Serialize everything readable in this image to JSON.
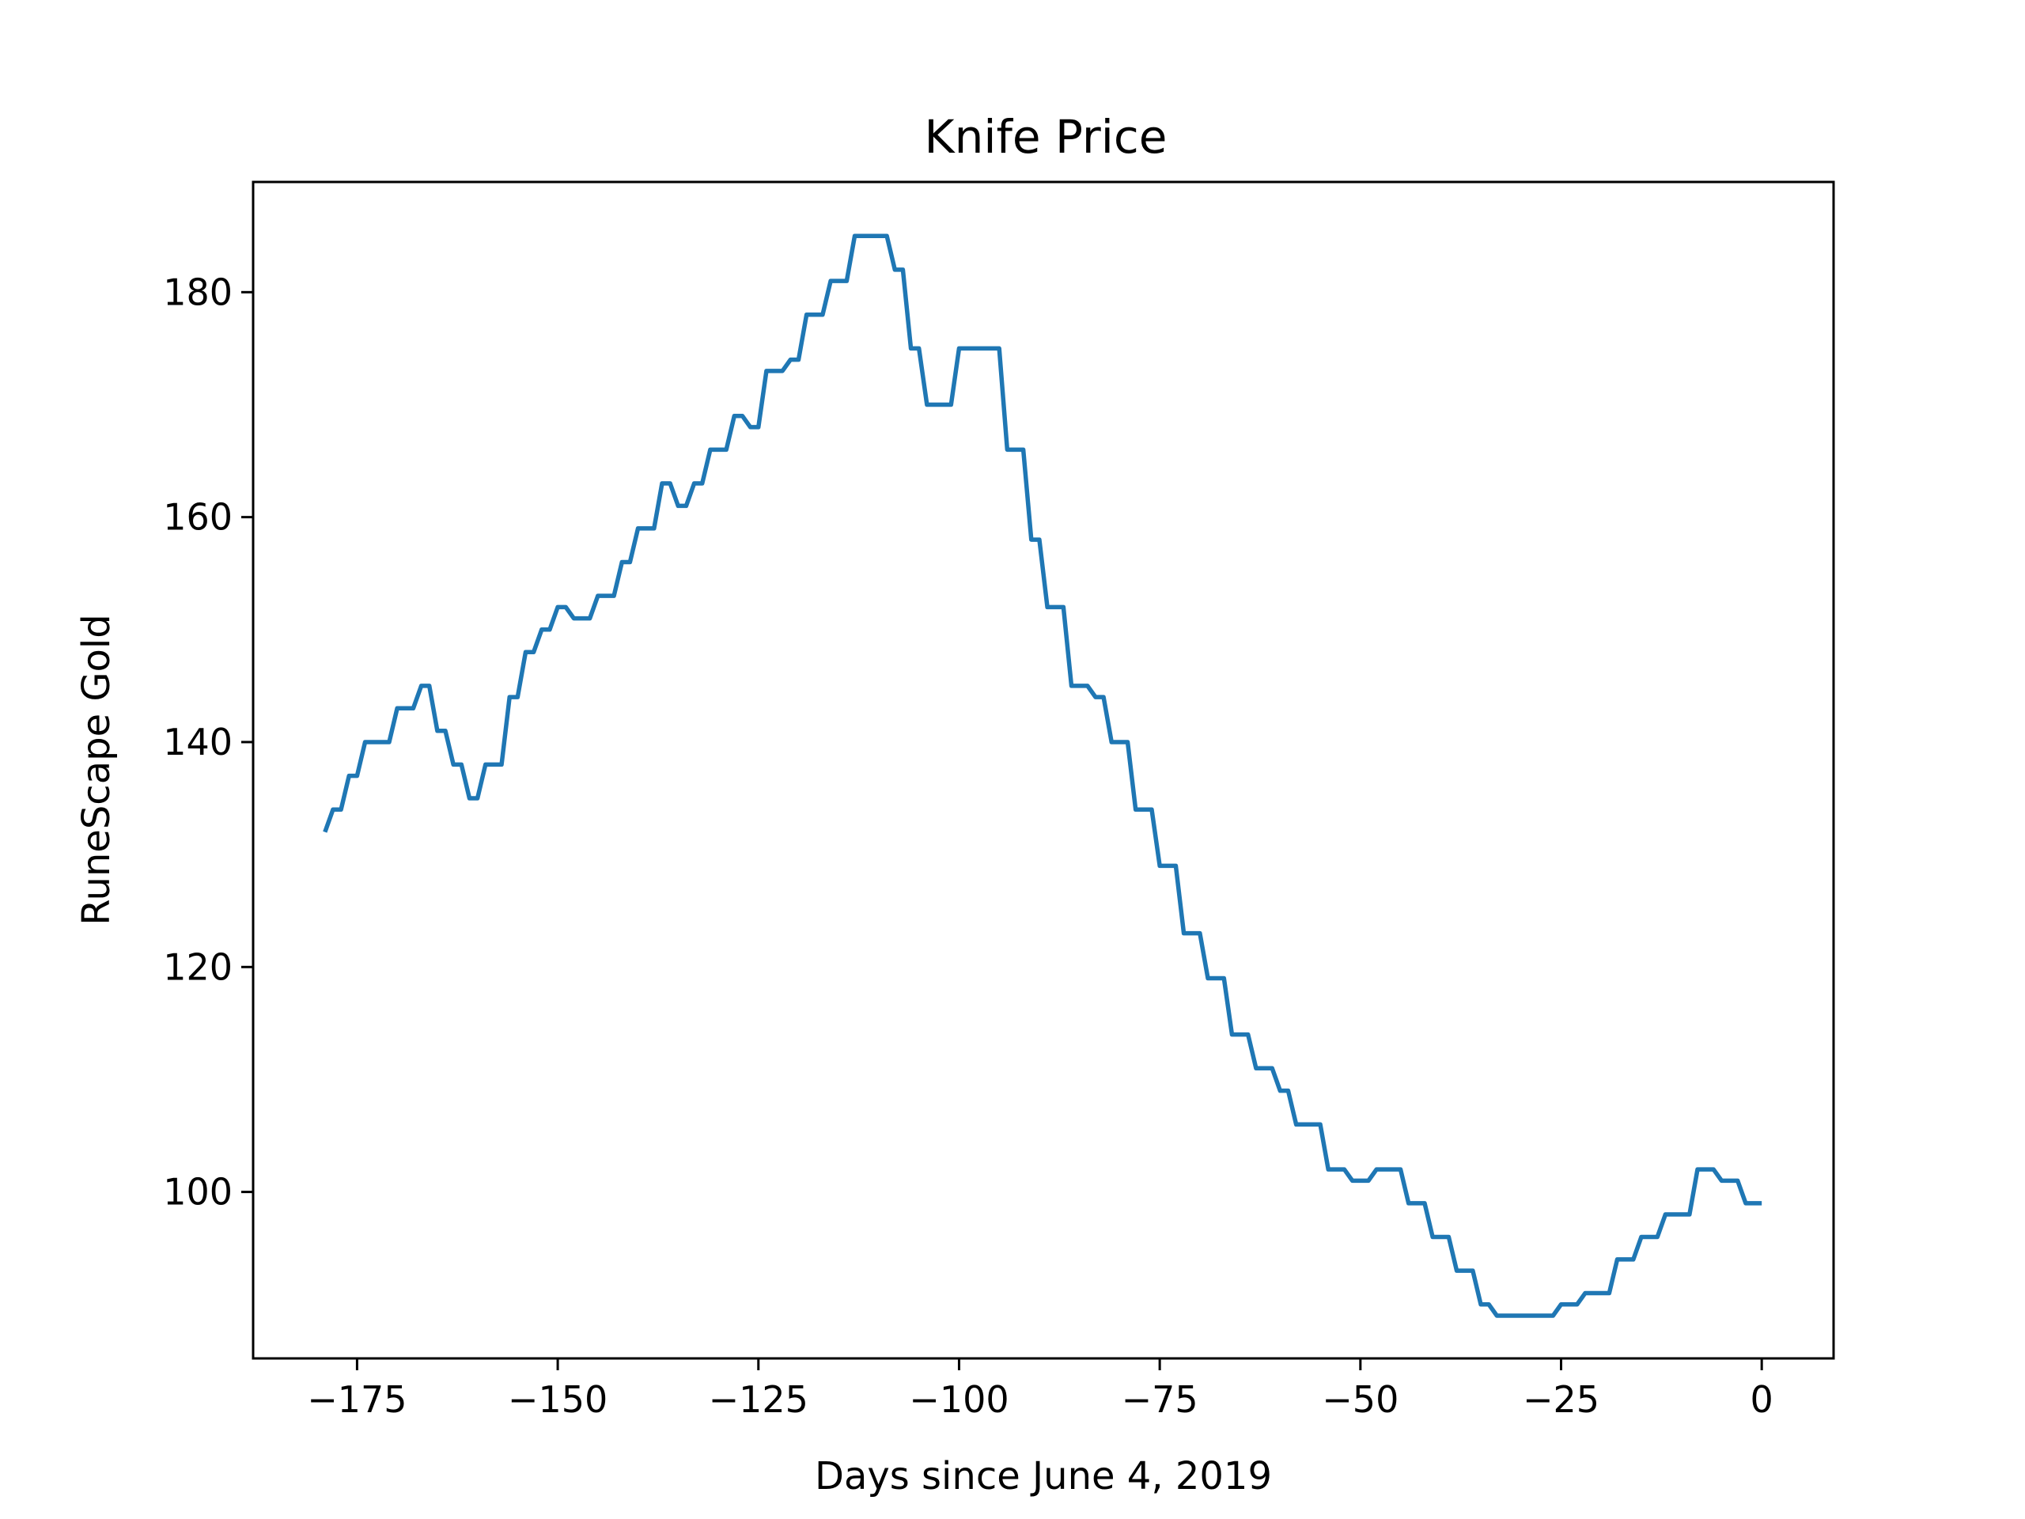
{
  "chart_data": {
    "type": "line",
    "title": "Knife Price",
    "xlabel": "Days since June 4, 2019",
    "ylabel": "RuneScape Gold",
    "xlim": [
      -187.95,
      8.95
    ],
    "ylim": [
      85.2,
      189.8
    ],
    "x_ticks": [
      -175,
      -150,
      -125,
      -100,
      -75,
      -50,
      -25,
      0
    ],
    "x_tick_labels": [
      "−175",
      "−150",
      "−125",
      "−100",
      "−75",
      "−50",
      "−25",
      "0"
    ],
    "y_ticks": [
      100,
      120,
      140,
      160,
      180
    ],
    "y_tick_labels": [
      "100",
      "120",
      "140",
      "160",
      "180"
    ],
    "grid": false,
    "legend": false,
    "line_color": "#1f77b4",
    "series": [
      {
        "x": [
          -179,
          -178,
          -177,
          -176,
          -175,
          -174,
          -173,
          -172,
          -171,
          -170,
          -169,
          -168,
          -167,
          -166,
          -165,
          -164,
          -163,
          -162,
          -161,
          -160,
          -159,
          -158,
          -157,
          -156,
          -155,
          -154,
          -153,
          -152,
          -151,
          -150,
          -149,
          -148,
          -147,
          -146,
          -145,
          -144,
          -143,
          -142,
          -141,
          -140,
          -139,
          -138,
          -137,
          -136,
          -135,
          -134,
          -133,
          -132,
          -131,
          -130,
          -129,
          -128,
          -127,
          -126,
          -125,
          -124,
          -123,
          -122,
          -121,
          -120,
          -119,
          -118,
          -117,
          -116,
          -115,
          -114,
          -113,
          -112,
          -111,
          -110,
          -109,
          -108,
          -107,
          -106,
          -105,
          -104,
          -103,
          -102,
          -101,
          -100,
          -99,
          -98,
          -97,
          -96,
          -95,
          -94,
          -93,
          -92,
          -91,
          -90,
          -89,
          -88,
          -87,
          -86,
          -85,
          -84,
          -83,
          -82,
          -81,
          -80,
          -79,
          -78,
          -77,
          -76,
          -75,
          -74,
          -73,
          -72,
          -71,
          -70,
          -69,
          -68,
          -67,
          -66,
          -65,
          -64,
          -63,
          -62,
          -61,
          -60,
          -59,
          -58,
          -57,
          -56,
          -55,
          -54,
          -53,
          -52,
          -51,
          -50,
          -49,
          -48,
          -47,
          -46,
          -45,
          -44,
          -43,
          -42,
          -41,
          -40,
          -39,
          -38,
          -37,
          -36,
          -35,
          -34,
          -33,
          -32,
          -31,
          -30,
          -29,
          -28,
          -27,
          -26,
          -25,
          -24,
          -23,
          -22,
          -21,
          -20,
          -19,
          -18,
          -17,
          -16,
          -15,
          -14,
          -13,
          -12,
          -11,
          -10,
          -9,
          -8,
          -7,
          -6,
          -5,
          -4,
          -3,
          -2,
          -1,
          0
        ],
        "y": [
          132,
          134,
          134,
          137,
          137,
          140,
          140,
          140,
          140,
          143,
          143,
          143,
          145,
          145,
          141,
          141,
          138,
          138,
          135,
          135,
          138,
          138,
          138,
          144,
          144,
          148,
          148,
          150,
          150,
          152,
          152,
          151,
          151,
          151,
          153,
          153,
          153,
          156,
          156,
          159,
          159,
          159,
          163,
          163,
          161,
          161,
          163,
          163,
          166,
          166,
          166,
          169,
          169,
          168,
          168,
          173,
          173,
          173,
          174,
          174,
          178,
          178,
          178,
          181,
          181,
          181,
          185,
          185,
          185,
          185,
          185,
          182,
          182,
          175,
          175,
          170,
          170,
          170,
          170,
          175,
          175,
          175,
          175,
          175,
          175,
          166,
          166,
          166,
          158,
          158,
          152,
          152,
          152,
          145,
          145,
          145,
          144,
          144,
          140,
          140,
          140,
          134,
          134,
          134,
          129,
          129,
          129,
          123,
          123,
          123,
          119,
          119,
          119,
          114,
          114,
          114,
          111,
          111,
          111,
          109,
          109,
          106,
          106,
          106,
          106,
          102,
          102,
          102,
          101,
          101,
          101,
          102,
          102,
          102,
          102,
          99,
          99,
          99,
          96,
          96,
          96,
          93,
          93,
          93,
          90,
          90,
          89,
          89,
          89,
          89,
          89,
          89,
          89,
          89,
          90,
          90,
          90,
          91,
          91,
          91,
          91,
          94,
          94,
          94,
          96,
          96,
          96,
          98,
          98,
          98,
          98,
          102,
          102,
          102,
          101,
          101,
          101,
          99,
          99,
          99
        ]
      }
    ]
  }
}
